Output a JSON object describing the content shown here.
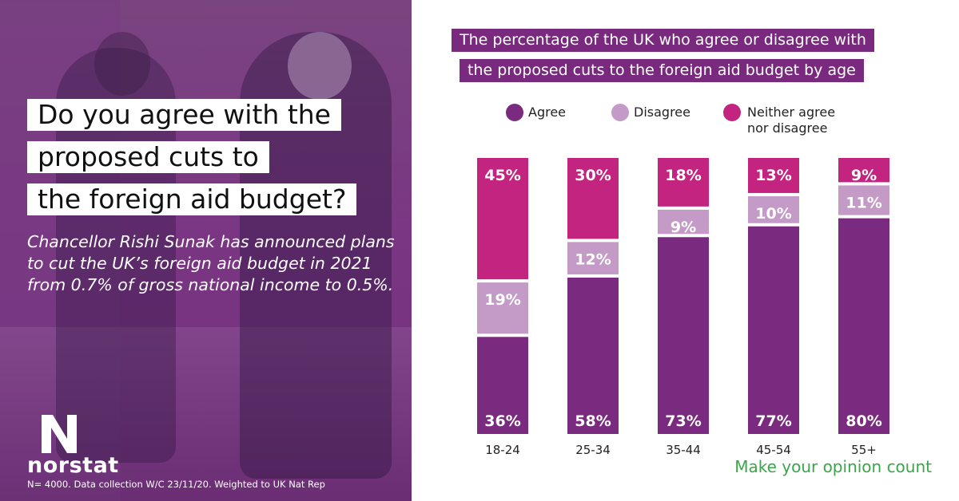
{
  "question": {
    "line1": "Do you agree with the",
    "line2": "proposed cuts to",
    "line3": "the foreign aid budget?"
  },
  "intro": "Chancellor Rishi Sunak has announced plans to cut the UK’s foreign aid budget in 2021 from 0.7% of gross national income to 0.5%.",
  "brand": {
    "name": "norstat",
    "logo_icon": "norstat-n-logo-icon"
  },
  "footnote": "N= 4000. Data collection W/C 23/11/20. Weighted to UK Nat Rep",
  "tagline": "Make your opinion count",
  "colors": {
    "agree": "#7b2b7f",
    "disagree": "#c49bc6",
    "neither": "#c2247f",
    "title_bg": "#7a2a7e",
    "tagline": "#3aa64a"
  },
  "legend": {
    "agree": "Agree",
    "disagree": "Disagree",
    "neither_line1": "Neither agree",
    "neither_line2": "nor disagree"
  },
  "chart_data": {
    "type": "bar",
    "stacked": true,
    "title": "The percentage of the UK who agree or disagree with the proposed cuts to the foreign aid budget by age",
    "title_line1": "The percentage of the UK who agree or disagree with",
    "title_line2": "the proposed cuts to the foreign aid budget by age",
    "categories": [
      "18-24",
      "25-34",
      "35-44",
      "45-54",
      "55+"
    ],
    "series": [
      {
        "name": "Agree",
        "key": "agree",
        "values": [
          36,
          58,
          73,
          77,
          80
        ]
      },
      {
        "name": "Disagree",
        "key": "disagree",
        "values": [
          19,
          12,
          9,
          10,
          11
        ]
      },
      {
        "name": "Neither agree nor disagree",
        "key": "neither",
        "values": [
          45,
          30,
          18,
          13,
          9
        ]
      }
    ],
    "value_suffix": "%",
    "ylim": [
      0,
      100
    ],
    "grid": false,
    "legend_position": "top"
  }
}
